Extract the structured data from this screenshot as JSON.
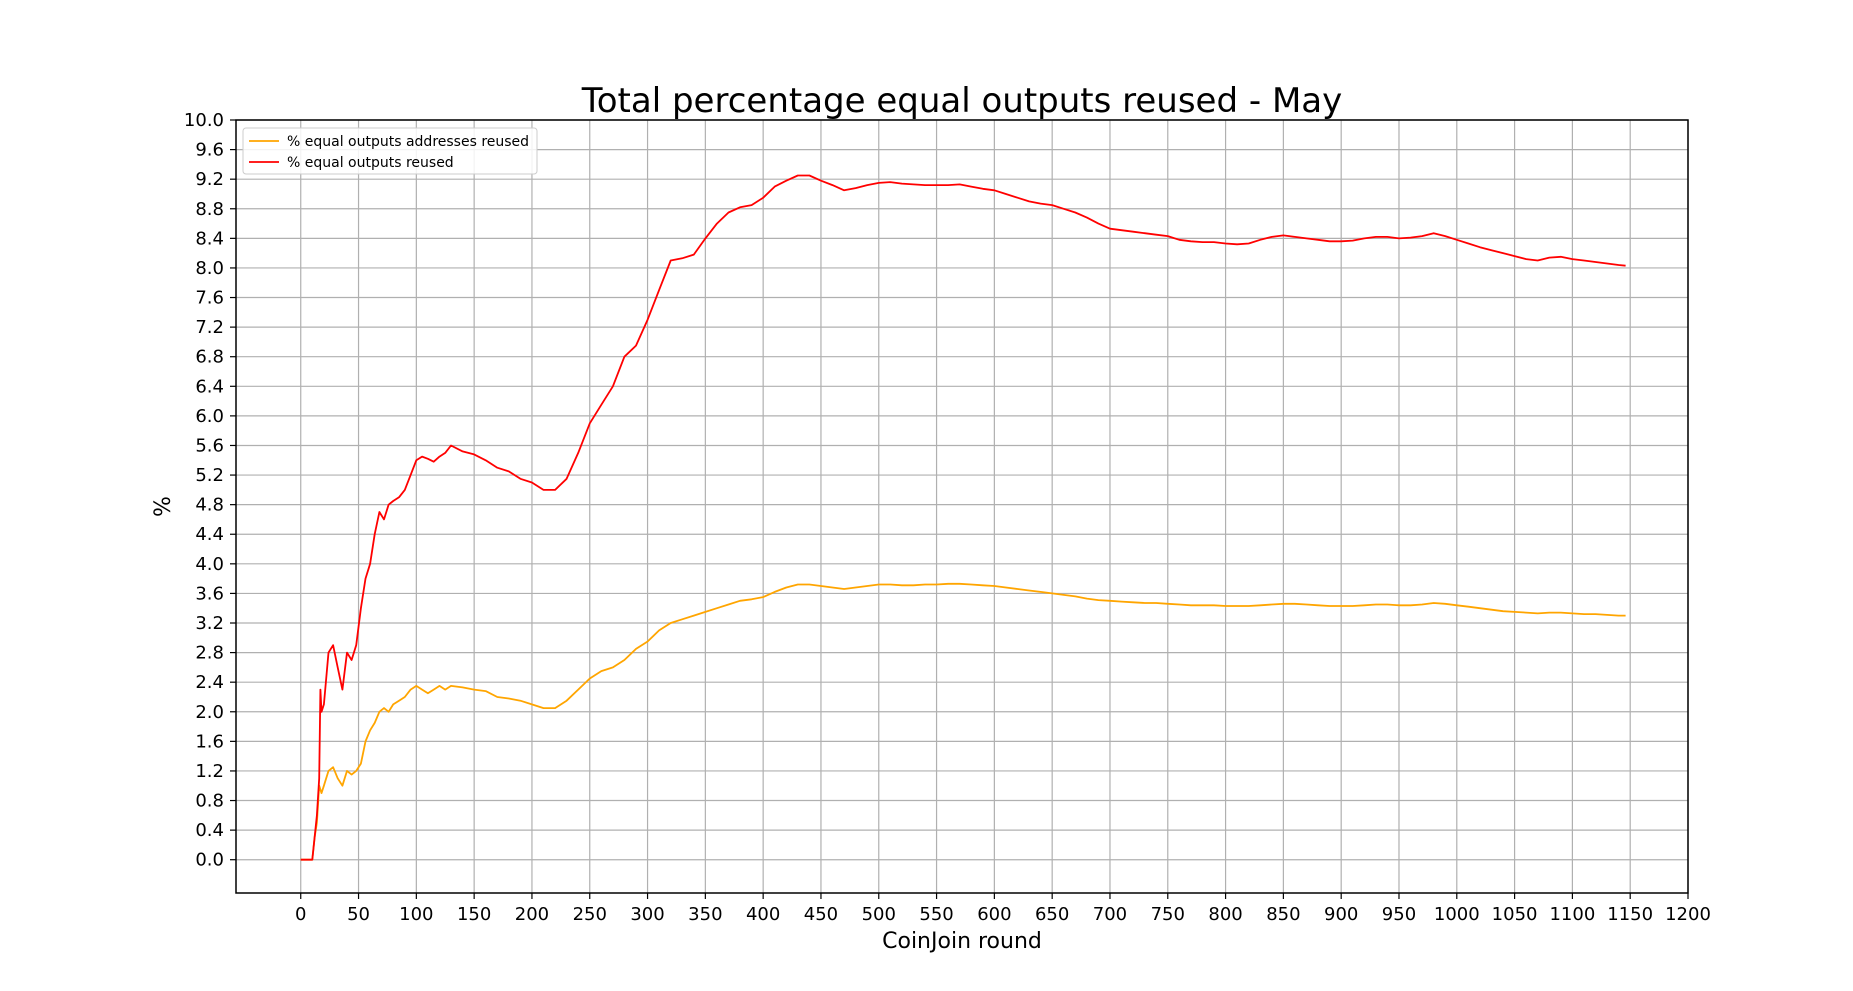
{
  "chart_data": {
    "type": "line",
    "title": "Total percentage equal outputs reused - May",
    "xlabel": "CoinJoin round",
    "ylabel": "%",
    "xlim": [
      -56,
      1200
    ],
    "ylim": [
      -0.45,
      10.0
    ],
    "xticks": [
      0,
      50,
      100,
      150,
      200,
      250,
      300,
      350,
      400,
      450,
      500,
      550,
      600,
      650,
      700,
      750,
      800,
      850,
      900,
      950,
      1000,
      1050,
      1100,
      1150,
      1200
    ],
    "yticks": [
      0.0,
      0.4,
      0.8,
      1.2,
      1.6,
      2.0,
      2.4,
      2.8,
      3.2,
      3.6,
      4.0,
      4.4,
      4.8,
      5.2,
      5.6,
      6.0,
      6.4,
      6.8,
      7.2,
      7.6,
      8.0,
      8.4,
      8.8,
      9.2,
      9.6,
      10.0
    ],
    "grid": true,
    "legend_position": "top-left",
    "series": [
      {
        "name": "% equal outputs addresses reused",
        "color": "#ffa500",
        "points": [
          [
            0,
            0.0
          ],
          [
            5,
            0.0
          ],
          [
            10,
            0.0
          ],
          [
            12,
            0.3
          ],
          [
            14,
            0.5
          ],
          [
            16,
            1.0
          ],
          [
            18,
            0.9
          ],
          [
            20,
            1.0
          ],
          [
            24,
            1.2
          ],
          [
            28,
            1.25
          ],
          [
            32,
            1.1
          ],
          [
            36,
            1.0
          ],
          [
            40,
            1.2
          ],
          [
            44,
            1.15
          ],
          [
            48,
            1.2
          ],
          [
            52,
            1.3
          ],
          [
            56,
            1.6
          ],
          [
            60,
            1.75
          ],
          [
            64,
            1.85
          ],
          [
            68,
            2.0
          ],
          [
            72,
            2.05
          ],
          [
            76,
            2.0
          ],
          [
            80,
            2.1
          ],
          [
            85,
            2.15
          ],
          [
            90,
            2.2
          ],
          [
            95,
            2.3
          ],
          [
            100,
            2.35
          ],
          [
            105,
            2.3
          ],
          [
            110,
            2.25
          ],
          [
            115,
            2.3
          ],
          [
            120,
            2.35
          ],
          [
            125,
            2.3
          ],
          [
            130,
            2.35
          ],
          [
            140,
            2.33
          ],
          [
            150,
            2.3
          ],
          [
            160,
            2.28
          ],
          [
            170,
            2.2
          ],
          [
            180,
            2.18
          ],
          [
            190,
            2.15
          ],
          [
            200,
            2.1
          ],
          [
            210,
            2.05
          ],
          [
            220,
            2.05
          ],
          [
            230,
            2.15
          ],
          [
            240,
            2.3
          ],
          [
            250,
            2.45
          ],
          [
            260,
            2.55
          ],
          [
            270,
            2.6
          ],
          [
            280,
            2.7
          ],
          [
            290,
            2.85
          ],
          [
            300,
            2.95
          ],
          [
            310,
            3.1
          ],
          [
            320,
            3.2
          ],
          [
            330,
            3.25
          ],
          [
            340,
            3.3
          ],
          [
            350,
            3.35
          ],
          [
            360,
            3.4
          ],
          [
            370,
            3.45
          ],
          [
            380,
            3.5
          ],
          [
            390,
            3.52
          ],
          [
            400,
            3.55
          ],
          [
            410,
            3.62
          ],
          [
            420,
            3.68
          ],
          [
            430,
            3.72
          ],
          [
            440,
            3.72
          ],
          [
            450,
            3.7
          ],
          [
            460,
            3.68
          ],
          [
            470,
            3.66
          ],
          [
            480,
            3.68
          ],
          [
            490,
            3.7
          ],
          [
            500,
            3.72
          ],
          [
            510,
            3.72
          ],
          [
            520,
            3.71
          ],
          [
            530,
            3.71
          ],
          [
            540,
            3.72
          ],
          [
            550,
            3.72
          ],
          [
            560,
            3.73
          ],
          [
            570,
            3.73
          ],
          [
            580,
            3.72
          ],
          [
            590,
            3.71
          ],
          [
            600,
            3.7
          ],
          [
            610,
            3.68
          ],
          [
            620,
            3.66
          ],
          [
            630,
            3.64
          ],
          [
            640,
            3.62
          ],
          [
            650,
            3.6
          ],
          [
            660,
            3.58
          ],
          [
            670,
            3.56
          ],
          [
            680,
            3.53
          ],
          [
            690,
            3.51
          ],
          [
            700,
            3.5
          ],
          [
            710,
            3.49
          ],
          [
            720,
            3.48
          ],
          [
            730,
            3.47
          ],
          [
            740,
            3.47
          ],
          [
            750,
            3.46
          ],
          [
            760,
            3.45
          ],
          [
            770,
            3.44
          ],
          [
            780,
            3.44
          ],
          [
            790,
            3.44
          ],
          [
            800,
            3.43
          ],
          [
            810,
            3.43
          ],
          [
            820,
            3.43
          ],
          [
            830,
            3.44
          ],
          [
            840,
            3.45
          ],
          [
            850,
            3.46
          ],
          [
            860,
            3.46
          ],
          [
            870,
            3.45
          ],
          [
            880,
            3.44
          ],
          [
            890,
            3.43
          ],
          [
            900,
            3.43
          ],
          [
            910,
            3.43
          ],
          [
            920,
            3.44
          ],
          [
            930,
            3.45
          ],
          [
            940,
            3.45
          ],
          [
            950,
            3.44
          ],
          [
            960,
            3.44
          ],
          [
            970,
            3.45
          ],
          [
            980,
            3.47
          ],
          [
            990,
            3.46
          ],
          [
            1000,
            3.44
          ],
          [
            1010,
            3.42
          ],
          [
            1020,
            3.4
          ],
          [
            1030,
            3.38
          ],
          [
            1040,
            3.36
          ],
          [
            1050,
            3.35
          ],
          [
            1060,
            3.34
          ],
          [
            1070,
            3.33
          ],
          [
            1080,
            3.34
          ],
          [
            1090,
            3.34
          ],
          [
            1100,
            3.33
          ],
          [
            1110,
            3.32
          ],
          [
            1120,
            3.32
          ],
          [
            1130,
            3.31
          ],
          [
            1140,
            3.3
          ],
          [
            1146,
            3.3
          ]
        ]
      },
      {
        "name": "% equal outputs reused",
        "color": "#ff0000",
        "points": [
          [
            0,
            0.0
          ],
          [
            5,
            0.0
          ],
          [
            10,
            0.0
          ],
          [
            12,
            0.3
          ],
          [
            14,
            0.6
          ],
          [
            16,
            1.1
          ],
          [
            17,
            2.3
          ],
          [
            18,
            2.0
          ],
          [
            20,
            2.1
          ],
          [
            24,
            2.8
          ],
          [
            28,
            2.9
          ],
          [
            32,
            2.6
          ],
          [
            36,
            2.3
          ],
          [
            40,
            2.8
          ],
          [
            44,
            2.7
          ],
          [
            48,
            2.9
          ],
          [
            52,
            3.4
          ],
          [
            56,
            3.8
          ],
          [
            60,
            4.0
          ],
          [
            64,
            4.4
          ],
          [
            68,
            4.7
          ],
          [
            72,
            4.6
          ],
          [
            76,
            4.8
          ],
          [
            80,
            4.85
          ],
          [
            85,
            4.9
          ],
          [
            90,
            5.0
          ],
          [
            95,
            5.2
          ],
          [
            100,
            5.4
          ],
          [
            105,
            5.45
          ],
          [
            110,
            5.42
          ],
          [
            115,
            5.38
          ],
          [
            120,
            5.45
          ],
          [
            125,
            5.5
          ],
          [
            130,
            5.6
          ],
          [
            140,
            5.52
          ],
          [
            150,
            5.48
          ],
          [
            160,
            5.4
          ],
          [
            170,
            5.3
          ],
          [
            180,
            5.25
          ],
          [
            190,
            5.15
          ],
          [
            200,
            5.1
          ],
          [
            210,
            5.0
          ],
          [
            220,
            5.0
          ],
          [
            230,
            5.15
          ],
          [
            240,
            5.5
          ],
          [
            250,
            5.9
          ],
          [
            260,
            6.15
          ],
          [
            270,
            6.4
          ],
          [
            280,
            6.8
          ],
          [
            290,
            6.95
          ],
          [
            300,
            7.3
          ],
          [
            310,
            7.7
          ],
          [
            320,
            8.1
          ],
          [
            330,
            8.13
          ],
          [
            340,
            8.18
          ],
          [
            350,
            8.4
          ],
          [
            360,
            8.6
          ],
          [
            370,
            8.75
          ],
          [
            380,
            8.82
          ],
          [
            390,
            8.85
          ],
          [
            400,
            8.95
          ],
          [
            410,
            9.1
          ],
          [
            420,
            9.18
          ],
          [
            430,
            9.25
          ],
          [
            440,
            9.25
          ],
          [
            450,
            9.18
          ],
          [
            460,
            9.12
          ],
          [
            470,
            9.05
          ],
          [
            480,
            9.08
          ],
          [
            490,
            9.12
          ],
          [
            500,
            9.15
          ],
          [
            510,
            9.16
          ],
          [
            520,
            9.14
          ],
          [
            530,
            9.13
          ],
          [
            540,
            9.12
          ],
          [
            550,
            9.12
          ],
          [
            560,
            9.12
          ],
          [
            570,
            9.13
          ],
          [
            580,
            9.1
          ],
          [
            590,
            9.07
          ],
          [
            600,
            9.05
          ],
          [
            610,
            9.0
          ],
          [
            620,
            8.95
          ],
          [
            630,
            8.9
          ],
          [
            640,
            8.87
          ],
          [
            650,
            8.85
          ],
          [
            660,
            8.8
          ],
          [
            670,
            8.75
          ],
          [
            680,
            8.68
          ],
          [
            690,
            8.6
          ],
          [
            700,
            8.53
          ],
          [
            710,
            8.51
          ],
          [
            720,
            8.49
          ],
          [
            730,
            8.47
          ],
          [
            740,
            8.45
          ],
          [
            750,
            8.43
          ],
          [
            760,
            8.38
          ],
          [
            770,
            8.36
          ],
          [
            780,
            8.35
          ],
          [
            790,
            8.35
          ],
          [
            800,
            8.33
          ],
          [
            810,
            8.32
          ],
          [
            820,
            8.33
          ],
          [
            830,
            8.38
          ],
          [
            840,
            8.42
          ],
          [
            850,
            8.44
          ],
          [
            860,
            8.42
          ],
          [
            870,
            8.4
          ],
          [
            880,
            8.38
          ],
          [
            890,
            8.36
          ],
          [
            900,
            8.36
          ],
          [
            910,
            8.37
          ],
          [
            920,
            8.4
          ],
          [
            930,
            8.42
          ],
          [
            940,
            8.42
          ],
          [
            950,
            8.4
          ],
          [
            960,
            8.41
          ],
          [
            970,
            8.43
          ],
          [
            980,
            8.47
          ],
          [
            990,
            8.43
          ],
          [
            1000,
            8.38
          ],
          [
            1010,
            8.33
          ],
          [
            1020,
            8.28
          ],
          [
            1030,
            8.24
          ],
          [
            1040,
            8.2
          ],
          [
            1050,
            8.16
          ],
          [
            1060,
            8.12
          ],
          [
            1070,
            8.1
          ],
          [
            1080,
            8.14
          ],
          [
            1090,
            8.15
          ],
          [
            1100,
            8.12
          ],
          [
            1110,
            8.1
          ],
          [
            1120,
            8.08
          ],
          [
            1130,
            8.06
          ],
          [
            1140,
            8.04
          ],
          [
            1146,
            8.03
          ]
        ]
      }
    ]
  }
}
